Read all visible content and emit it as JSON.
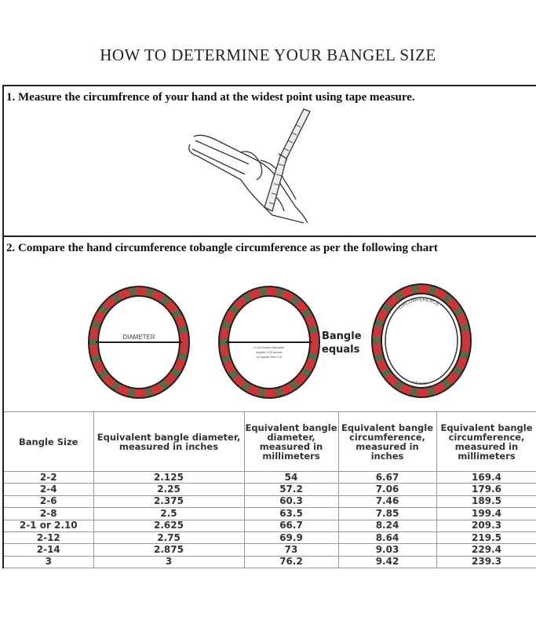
{
  "title": "HOW TO DETERMINE YOUR BANGEL SIZE",
  "step1": {
    "text": "1. Measure the circumfrence of your hand at the widest point using tape measure."
  },
  "step2": {
    "text": "2. Compare the hand circumference tobangle circumference as per the following chart"
  },
  "diagram": {
    "diameter_label": "DIAMETER",
    "example_line1": "2-1/4 inches Diameter",
    "example_line2": "equals 2.25 inches",
    "example_line3": "or equals Size 2-4",
    "bangle_line1": "Bangle",
    "bangle_line2": "equals",
    "circumference_label": "CIRCUMFERENCE",
    "circumference_value": "7.06 inches",
    "colors": {
      "red": "#c8383a",
      "green": "#5a6a48",
      "dark": "#2a1a1a"
    }
  },
  "table": {
    "headers": [
      "Bangle Size",
      "Equivalent bangle diameter, measured in inches",
      "Equivalent bangle diameter, measured in millimeters",
      "Equivalent bangle circumference, measured in inches",
      "Equivalent bangle circumference, measured in millimeters"
    ],
    "rows": [
      [
        "2-2",
        "2.125",
        "54",
        "6.67",
        "169.4"
      ],
      [
        "2-4",
        "2.25",
        "57.2",
        "7.06",
        "179.6"
      ],
      [
        "2-6",
        "2.375",
        "60.3",
        "7.46",
        "189.5"
      ],
      [
        "2-8",
        "2.5",
        "63.5",
        "7.85",
        "199.4"
      ],
      [
        "2-1 or 2.10",
        "2.625",
        "66.7",
        "8.24",
        "209.3"
      ],
      [
        "2-12",
        "2.75",
        "69.9",
        "8.64",
        "219.5"
      ],
      [
        "2-14",
        "2.875",
        "73",
        "9.03",
        "229.4"
      ],
      [
        "3",
        "3",
        "76.2",
        "9.42",
        "239.3"
      ]
    ]
  }
}
